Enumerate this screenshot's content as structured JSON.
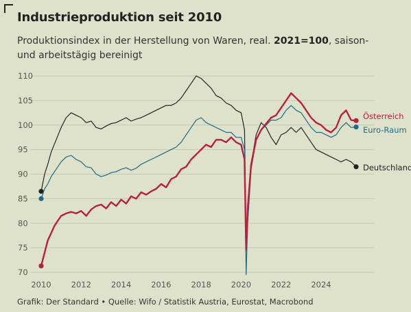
{
  "title": "Industrieproduktion seit 2010",
  "subtitle": {
    "part1": "Produktionsindex in der Herstellung von Waren, real. ",
    "bold": "2021=100",
    "part2": ", saison- und arbeitstägig bereinigt"
  },
  "source": "Grafik: Der Standard • Quelle: Wifo / Statistik Austria, Eurostat, Macrobond",
  "colors": {
    "background": "#dfe2ca",
    "grid": "#c6c9b2",
    "oesterreich": "#b8203d",
    "euro_raum": "#1d6a8b",
    "deutschland": "#222222"
  },
  "chart_data": {
    "type": "line",
    "title": "Industrieproduktion seit 2010",
    "xlabel": "",
    "ylabel": "",
    "xlim": [
      2010,
      2025.75
    ],
    "ylim": [
      70,
      110
    ],
    "x_ticks": [
      2010,
      2012,
      2014,
      2016,
      2018,
      2020,
      2022,
      2024
    ],
    "y_ticks": [
      70,
      75,
      80,
      85,
      90,
      95,
      100,
      105,
      110
    ],
    "grid": true,
    "legend": "direct-labels-right",
    "series": [
      {
        "name": "Österreich",
        "color": "#b8203d",
        "points": [
          [
            2010.0,
            71.3
          ],
          [
            2010.17,
            74
          ],
          [
            2010.33,
            76.5
          ],
          [
            2010.5,
            78
          ],
          [
            2010.67,
            79.5
          ],
          [
            2010.83,
            80.5
          ],
          [
            2011.0,
            81.5
          ],
          [
            2011.25,
            82
          ],
          [
            2011.5,
            82.3
          ],
          [
            2011.75,
            82
          ],
          [
            2012.0,
            82.5
          ],
          [
            2012.25,
            81.5
          ],
          [
            2012.5,
            82.8
          ],
          [
            2012.75,
            83.5
          ],
          [
            2013.0,
            83.8
          ],
          [
            2013.25,
            83
          ],
          [
            2013.5,
            84.3
          ],
          [
            2013.75,
            83.5
          ],
          [
            2014.0,
            84.8
          ],
          [
            2014.25,
            84
          ],
          [
            2014.5,
            85.5
          ],
          [
            2014.75,
            85
          ],
          [
            2015.0,
            86.3
          ],
          [
            2015.25,
            85.8
          ],
          [
            2015.5,
            86.5
          ],
          [
            2015.75,
            87
          ],
          [
            2016.0,
            88
          ],
          [
            2016.25,
            87.3
          ],
          [
            2016.5,
            89
          ],
          [
            2016.75,
            89.5
          ],
          [
            2017.0,
            91
          ],
          [
            2017.25,
            91.5
          ],
          [
            2017.5,
            93
          ],
          [
            2017.75,
            94
          ],
          [
            2018.0,
            95
          ],
          [
            2018.25,
            96
          ],
          [
            2018.5,
            95.5
          ],
          [
            2018.75,
            97
          ],
          [
            2019.0,
            97
          ],
          [
            2019.25,
            96.5
          ],
          [
            2019.5,
            97.5
          ],
          [
            2019.75,
            96.5
          ],
          [
            2020.0,
            96
          ],
          [
            2020.17,
            93
          ],
          [
            2020.25,
            74.5
          ],
          [
            2020.33,
            83
          ],
          [
            2020.5,
            92
          ],
          [
            2020.75,
            97
          ],
          [
            2021.0,
            99
          ],
          [
            2021.25,
            100.3
          ],
          [
            2021.5,
            101.5
          ],
          [
            2021.75,
            102
          ],
          [
            2022.0,
            103.5
          ],
          [
            2022.25,
            105
          ],
          [
            2022.5,
            106.5
          ],
          [
            2022.75,
            105.5
          ],
          [
            2023.0,
            104.5
          ],
          [
            2023.25,
            103
          ],
          [
            2023.5,
            101.5
          ],
          [
            2023.75,
            100.5
          ],
          [
            2024.0,
            100
          ],
          [
            2024.25,
            99
          ],
          [
            2024.5,
            98.5
          ],
          [
            2024.75,
            99.5
          ],
          [
            2025.0,
            102
          ],
          [
            2025.25,
            103
          ],
          [
            2025.5,
            101
          ],
          [
            2025.75,
            100.9
          ]
        ]
      },
      {
        "name": "Euro-Raum",
        "color": "#1d6a8b",
        "points": [
          [
            2010.0,
            85
          ],
          [
            2010.17,
            87
          ],
          [
            2010.33,
            88
          ],
          [
            2010.5,
            89.5
          ],
          [
            2010.75,
            91
          ],
          [
            2011.0,
            92.5
          ],
          [
            2011.25,
            93.5
          ],
          [
            2011.5,
            93.8
          ],
          [
            2011.75,
            93
          ],
          [
            2012.0,
            92.5
          ],
          [
            2012.25,
            91.5
          ],
          [
            2012.5,
            91.3
          ],
          [
            2012.75,
            90
          ],
          [
            2013.0,
            89.5
          ],
          [
            2013.25,
            89.8
          ],
          [
            2013.5,
            90.3
          ],
          [
            2013.75,
            90.5
          ],
          [
            2014.0,
            91
          ],
          [
            2014.25,
            91.3
          ],
          [
            2014.5,
            90.8
          ],
          [
            2014.75,
            91.2
          ],
          [
            2015.0,
            92
          ],
          [
            2015.25,
            92.5
          ],
          [
            2015.5,
            93
          ],
          [
            2015.75,
            93.5
          ],
          [
            2016.0,
            94
          ],
          [
            2016.25,
            94.5
          ],
          [
            2016.5,
            95
          ],
          [
            2016.75,
            95.5
          ],
          [
            2017.0,
            96.5
          ],
          [
            2017.25,
            98
          ],
          [
            2017.5,
            99.5
          ],
          [
            2017.75,
            101
          ],
          [
            2018.0,
            101.5
          ],
          [
            2018.25,
            100.5
          ],
          [
            2018.5,
            100
          ],
          [
            2018.75,
            99.5
          ],
          [
            2019.0,
            99
          ],
          [
            2019.25,
            98.5
          ],
          [
            2019.5,
            98.5
          ],
          [
            2019.75,
            97.5
          ],
          [
            2020.0,
            97.5
          ],
          [
            2020.17,
            95
          ],
          [
            2020.25,
            69.5
          ],
          [
            2020.33,
            80
          ],
          [
            2020.5,
            91
          ],
          [
            2020.75,
            97
          ],
          [
            2021.0,
            99
          ],
          [
            2021.25,
            100
          ],
          [
            2021.5,
            101
          ],
          [
            2021.75,
            101
          ],
          [
            2022.0,
            101.5
          ],
          [
            2022.25,
            103
          ],
          [
            2022.5,
            104
          ],
          [
            2022.75,
            103
          ],
          [
            2023.0,
            102.5
          ],
          [
            2023.25,
            101
          ],
          [
            2023.5,
            99.5
          ],
          [
            2023.75,
            98.5
          ],
          [
            2024.0,
            98.5
          ],
          [
            2024.25,
            98
          ],
          [
            2024.5,
            97.5
          ],
          [
            2024.75,
            98
          ],
          [
            2025.0,
            99.5
          ],
          [
            2025.25,
            100.5
          ],
          [
            2025.5,
            99.5
          ],
          [
            2025.75,
            99.6
          ]
        ]
      },
      {
        "name": "Deutschland",
        "color": "#222222",
        "points": [
          [
            2010.0,
            86.5
          ],
          [
            2010.17,
            90
          ],
          [
            2010.33,
            92
          ],
          [
            2010.5,
            94.5
          ],
          [
            2010.75,
            97
          ],
          [
            2011.0,
            99.5
          ],
          [
            2011.25,
            101.5
          ],
          [
            2011.5,
            102.5
          ],
          [
            2011.75,
            102
          ],
          [
            2012.0,
            101.5
          ],
          [
            2012.25,
            100.5
          ],
          [
            2012.5,
            100.8
          ],
          [
            2012.75,
            99.5
          ],
          [
            2013.0,
            99.2
          ],
          [
            2013.25,
            99.8
          ],
          [
            2013.5,
            100.3
          ],
          [
            2013.75,
            100.5
          ],
          [
            2014.0,
            101
          ],
          [
            2014.25,
            101.5
          ],
          [
            2014.5,
            100.8
          ],
          [
            2014.75,
            101.2
          ],
          [
            2015.0,
            101.5
          ],
          [
            2015.25,
            102
          ],
          [
            2015.5,
            102.5
          ],
          [
            2015.75,
            103
          ],
          [
            2016.0,
            103.5
          ],
          [
            2016.25,
            104
          ],
          [
            2016.5,
            104
          ],
          [
            2016.75,
            104.5
          ],
          [
            2017.0,
            105.5
          ],
          [
            2017.25,
            107
          ],
          [
            2017.5,
            108.5
          ],
          [
            2017.75,
            110
          ],
          [
            2018.0,
            109.5
          ],
          [
            2018.25,
            108.5
          ],
          [
            2018.5,
            107.5
          ],
          [
            2018.75,
            106
          ],
          [
            2019.0,
            105.5
          ],
          [
            2019.25,
            104.5
          ],
          [
            2019.5,
            104
          ],
          [
            2019.75,
            103
          ],
          [
            2020.0,
            102.5
          ],
          [
            2020.17,
            99
          ],
          [
            2020.25,
            75
          ],
          [
            2020.33,
            82
          ],
          [
            2020.5,
            92
          ],
          [
            2020.75,
            98
          ],
          [
            2021.0,
            100.5
          ],
          [
            2021.25,
            99.5
          ],
          [
            2021.5,
            97.5
          ],
          [
            2021.75,
            96
          ],
          [
            2022.0,
            98
          ],
          [
            2022.25,
            98.5
          ],
          [
            2022.5,
            99.5
          ],
          [
            2022.75,
            98.5
          ],
          [
            2023.0,
            99.5
          ],
          [
            2023.25,
            98
          ],
          [
            2023.5,
            96.5
          ],
          [
            2023.75,
            95
          ],
          [
            2024.0,
            94.5
          ],
          [
            2024.25,
            94
          ],
          [
            2024.5,
            93.5
          ],
          [
            2024.75,
            93
          ],
          [
            2025.0,
            92.5
          ],
          [
            2025.25,
            93
          ],
          [
            2025.5,
            92.5
          ],
          [
            2025.75,
            91.5
          ]
        ]
      }
    ]
  }
}
